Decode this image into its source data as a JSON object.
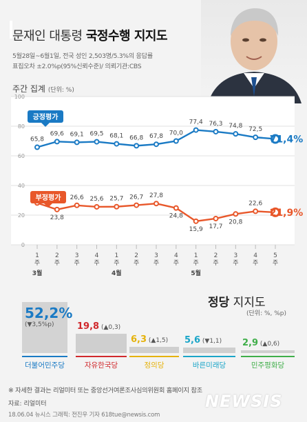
{
  "header": {
    "title_prefix": "문재인 대통령 ",
    "title_bold": "국정수행 지지도",
    "subtitle_1": "5월28일~6월1일, 전국 성인 2,503명/5.3%의 응답률",
    "subtitle_2": "표집오차 ±2.0%p(95%신뢰수준)/ 의뢰기관:CBS"
  },
  "weekly": {
    "label": "주간 집계",
    "unit": "(단위: %)"
  },
  "chart_data": {
    "type": "line",
    "x": [
      "1주",
      "2주",
      "3주",
      "4주",
      "1주",
      "2주",
      "3주",
      "4주",
      "1주",
      "2주",
      "3주",
      "4주",
      "5주"
    ],
    "month_labels": [
      {
        "label": "3월",
        "index": 0
      },
      {
        "label": "4월",
        "index": 4
      },
      {
        "label": "5월",
        "index": 8
      }
    ],
    "ylim": [
      0,
      100
    ],
    "yticks": [
      0,
      20,
      40,
      60,
      80,
      100
    ],
    "series": [
      {
        "name": "긍정평가",
        "color": "#1a7ac4",
        "values": [
          65.8,
          69.6,
          69.1,
          69.5,
          68.1,
          66.8,
          67.8,
          70.0,
          77.4,
          76.3,
          74.8,
          72.5,
          71.4
        ],
        "labels": [
          "65,8",
          "69,6",
          "69,1",
          "69,5",
          "68,1",
          "66,8",
          "67,8",
          "70,0",
          "77,4",
          "76,3",
          "74,8",
          "72,5",
          "71,4%"
        ]
      },
      {
        "name": "부정평가",
        "color": "#e8572a",
        "values": [
          28.2,
          23.8,
          26.6,
          25.6,
          25.7,
          26.7,
          27.8,
          24.8,
          15.9,
          17.7,
          20.8,
          22.6,
          21.9
        ],
        "labels": [
          "28,2",
          "23,8",
          "26,6",
          "25,6",
          "25,7",
          "26,7",
          "27,8",
          "24,8",
          "15,9",
          "17,7",
          "20,8",
          "22,6",
          "21,9%"
        ]
      }
    ]
  },
  "party": {
    "title_bold": "정당",
    "title_rest": " 지지도",
    "unit": "(단위: %, %p)",
    "items": [
      {
        "name": "더불어민주당",
        "value": "52,2%",
        "num": 52.2,
        "change": "(▼3,5%p)",
        "color": "#1a7ac4"
      },
      {
        "name": "자유한국당",
        "value": "19,8",
        "num": 19.8,
        "change": "(▲0,3)",
        "color": "#d0282c"
      },
      {
        "name": "정의당",
        "value": "6,3",
        "num": 6.3,
        "change": "(▲1,5)",
        "color": "#e5b20b"
      },
      {
        "name": "바른미래당",
        "value": "5,6",
        "num": 5.6,
        "change": "(▼1,1)",
        "color": "#1aa5c8"
      },
      {
        "name": "민주평화당",
        "value": "2,9",
        "num": 2.9,
        "change": "(▲0,6)",
        "color": "#3fae49"
      }
    ]
  },
  "footer": {
    "note": "※ 자세한 결과는 리얼미터 또는 중앙선거여론조사심의위원회 홈페이지 참조",
    "source": "자료: 리얼미터",
    "credit": "18.06.04 뉴시스 그래픽: 전진우 기자 618tue@newsis.com",
    "logo": "NEWSIS"
  },
  "colors": {
    "positive": "#1a7ac4",
    "negative": "#e8572a"
  }
}
